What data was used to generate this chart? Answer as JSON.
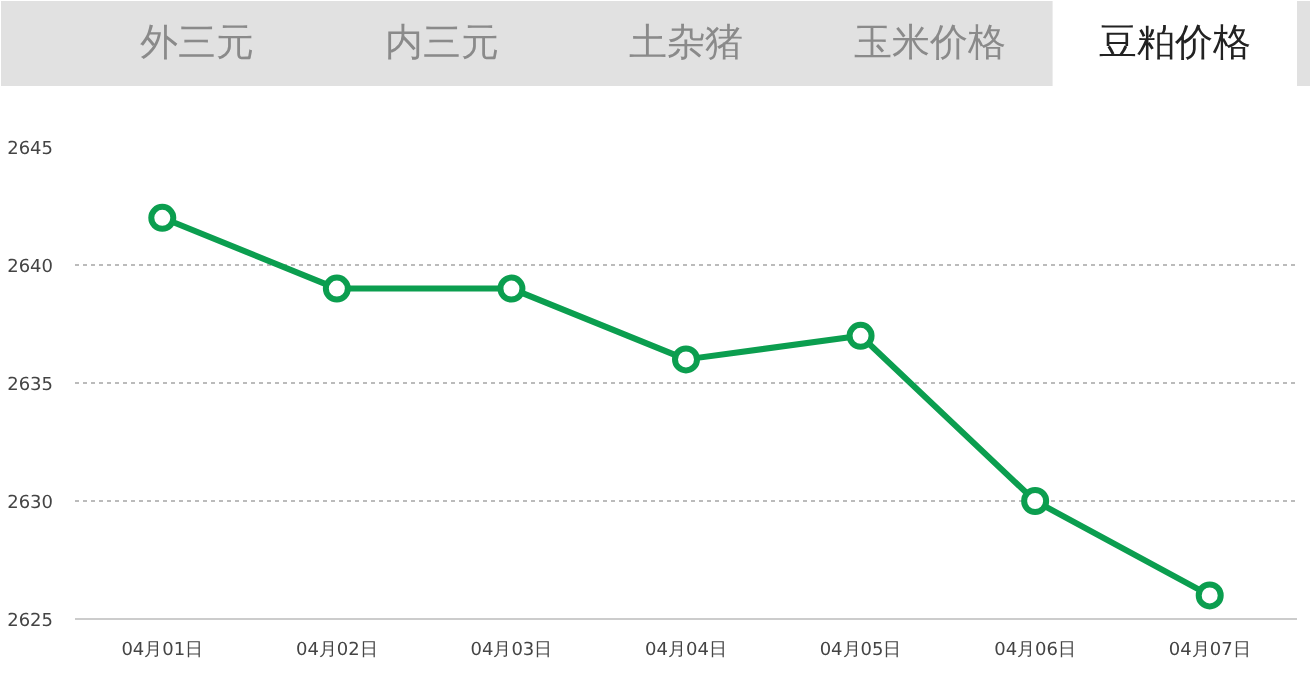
{
  "chart_data": {
    "type": "line",
    "title": "豆粕价格",
    "annotations": [
      "外三元",
      "内三元",
      "土杂猪",
      "玉米价格"
    ],
    "categories": [
      "04月01日",
      "04月02日",
      "04月03日",
      "04月04日",
      "04月05日",
      "04月06日",
      "04月07日"
    ],
    "series": [
      {
        "color": "#0b9e4f",
        "values": [
          2642,
          2639,
          2639,
          2636,
          2637,
          2630,
          2626
        ]
      }
    ],
    "ylim": [
      2625,
      2645
    ],
    "yticks": [
      2625,
      2630,
      2635,
      2640,
      2645
    ],
    "grid": "y",
    "marker": "circle",
    "line_style": "solid"
  }
}
